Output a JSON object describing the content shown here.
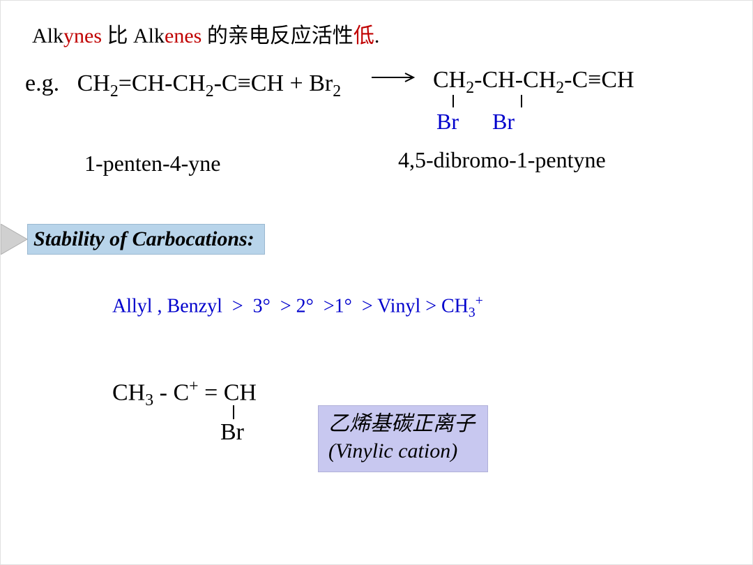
{
  "colors": {
    "accent_red": "#c00000",
    "accent_blue": "#0000cc",
    "band_fill": "#b8d4ea",
    "band_border": "#9ab8d0",
    "label_fill": "#c8c8f0",
    "label_border": "#b0b0d8",
    "text": "#000000",
    "background": "#ffffff"
  },
  "typography": {
    "family": "Times New Roman, serif",
    "body_size_pt": 24,
    "formula_size_pt": 26,
    "section_size_pt": 22
  },
  "line1": {
    "pre": "Alk",
    "ynes": "ynes",
    "mid1": " 比 Alk",
    "enes": "enes",
    "mid2": " 的亲电反应活性",
    "low": "低",
    "dot": "."
  },
  "equation": {
    "eg": "e.g.",
    "reactant_html": "CH<sub>2</sub>=CH-CH<sub>2</sub>-C≡CH + Br<sub>2</sub>",
    "product_html": "CH<sub>2</sub>-CH-CH<sub>2</sub>-C≡CH",
    "product_sub1": "Br",
    "product_sub2": "Br"
  },
  "names": {
    "left": "1-penten-4-yne",
    "right": "4,5-dibromo-1-pentyne"
  },
  "section": {
    "title": "Stability of Carbocations:"
  },
  "stability": {
    "text_html": "Allyl , Benzyl &nbsp;&gt; &nbsp;3°&nbsp; &gt; 2°&nbsp; &gt;1°&nbsp; &gt; Vinyl &gt; CH<sub>3</sub><sup>+</sup>"
  },
  "vinyl": {
    "formula_html": "CH<sub>3</sub> - C<sup>+</sup> = CH",
    "br": "Br",
    "label_cn": "乙烯基碳正离子",
    "label_en": "(Vinylic cation)"
  }
}
